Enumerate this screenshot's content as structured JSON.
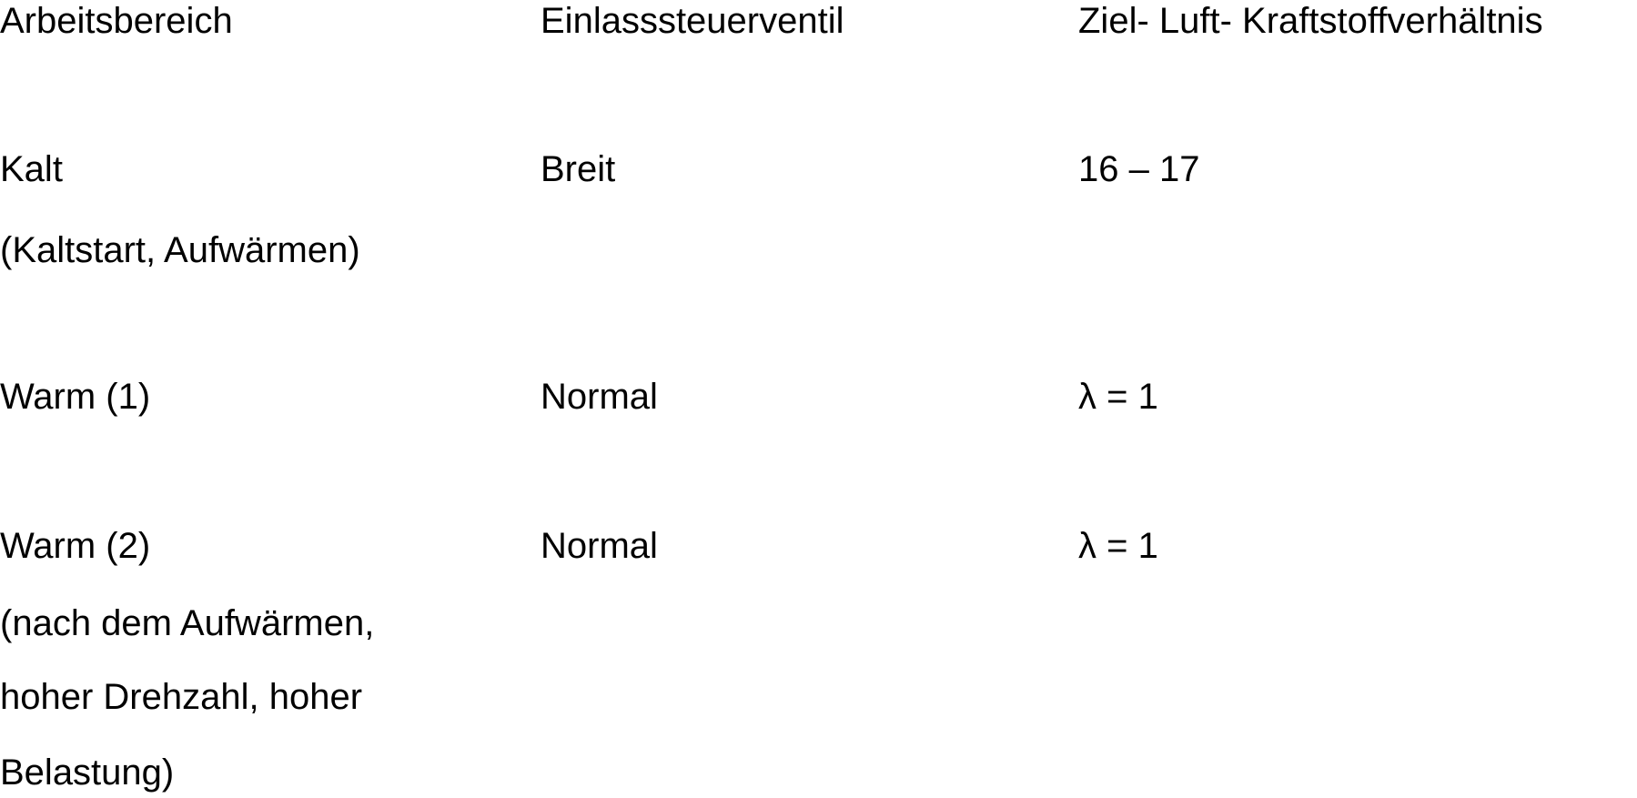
{
  "table": {
    "headers": [
      "Arbeitsbereich",
      "Einlasssteuerventil",
      "Ziel- Luft- Kraftstoffverhältnis"
    ],
    "rows": [
      {
        "bereich": [
          "Kalt",
          "(Kaltstart, Aufwärmen)"
        ],
        "ventil": "Breit",
        "verhaeltnis": "16 – 17"
      },
      {
        "bereich": [
          "Warm (1)"
        ],
        "ventil": "Normal",
        "verhaeltnis": "λ = 1"
      },
      {
        "bereich": [
          "Warm (2)",
          "(nach dem Aufwärmen,",
          "hoher Drehzahl, hoher",
          "Belastung)"
        ],
        "ventil": "Normal",
        "verhaeltnis": "λ = 1"
      }
    ]
  }
}
